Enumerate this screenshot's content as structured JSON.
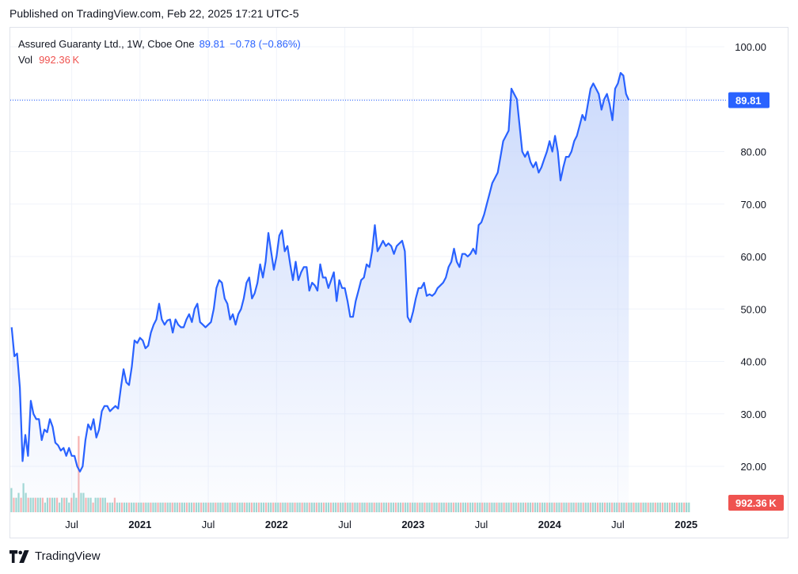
{
  "header": {
    "published": "Published on TradingView.com, Feb 22, 2025 17:21 UTC-5"
  },
  "legend": {
    "symbol": "Assured Guaranty Ltd., 1W, Cboe One",
    "last": "89.81",
    "change": "−0.78 (−0.86%)",
    "vol_label": "Vol",
    "vol_value": "992.36 K"
  },
  "badges": {
    "price": "89.81",
    "volume": "992.36 K"
  },
  "footer": {
    "brand": "TradingView"
  },
  "colors": {
    "line": "#2962ff",
    "fill_top": "#c9d8fb",
    "up_vol": "#26a69a",
    "down_vol": "#ef5350",
    "price_badge": "#2962ff",
    "vol_badge": "#ef5350"
  },
  "chart_data": {
    "type": "area",
    "title": "",
    "xlabel": "",
    "ylabel": "",
    "ylim": [
      15,
      103
    ],
    "yticks": [
      "100.00",
      "90.00",
      "80.00",
      "70.00",
      "60.00",
      "50.00",
      "40.00",
      "30.00",
      "20.00"
    ],
    "xticks": [
      {
        "label": "Jul",
        "t": 2020.5,
        "bold": false
      },
      {
        "label": "2021",
        "t": 2021.0,
        "bold": true
      },
      {
        "label": "Jul",
        "t": 2021.5,
        "bold": false
      },
      {
        "label": "2022",
        "t": 2022.0,
        "bold": true
      },
      {
        "label": "Jul",
        "t": 2022.5,
        "bold": false
      },
      {
        "label": "2023",
        "t": 2023.0,
        "bold": true
      },
      {
        "label": "Jul",
        "t": 2023.5,
        "bold": false
      },
      {
        "label": "2024",
        "t": 2024.0,
        "bold": true
      },
      {
        "label": "Jul",
        "t": 2024.5,
        "bold": false
      },
      {
        "label": "2025",
        "t": 2025.0,
        "bold": true
      }
    ],
    "last_price": 89.81,
    "series": [
      {
        "name": "Assured Guaranty Ltd.",
        "points": [
          [
            2020.06,
            46.5
          ],
          [
            2020.08,
            41
          ],
          [
            2020.1,
            41.5
          ],
          [
            2020.12,
            35
          ],
          [
            2020.14,
            21
          ],
          [
            2020.16,
            26
          ],
          [
            2020.18,
            22
          ],
          [
            2020.2,
            32.5
          ],
          [
            2020.22,
            30
          ],
          [
            2020.24,
            29
          ],
          [
            2020.26,
            29
          ],
          [
            2020.28,
            25
          ],
          [
            2020.3,
            27
          ],
          [
            2020.32,
            26.5
          ],
          [
            2020.34,
            29
          ],
          [
            2020.36,
            27.5
          ],
          [
            2020.38,
            24.5
          ],
          [
            2020.4,
            24
          ],
          [
            2020.42,
            23
          ],
          [
            2020.44,
            23.5
          ],
          [
            2020.46,
            22
          ],
          [
            2020.48,
            23.5
          ],
          [
            2020.5,
            22
          ],
          [
            2020.52,
            22
          ],
          [
            2020.54,
            20
          ],
          [
            2020.56,
            19
          ],
          [
            2020.58,
            20
          ],
          [
            2020.6,
            25
          ],
          [
            2020.62,
            28
          ],
          [
            2020.64,
            27
          ],
          [
            2020.66,
            29
          ],
          [
            2020.68,
            25.5
          ],
          [
            2020.7,
            27
          ],
          [
            2020.72,
            30.5
          ],
          [
            2020.74,
            31.5
          ],
          [
            2020.76,
            31.5
          ],
          [
            2020.78,
            30.5
          ],
          [
            2020.8,
            31
          ],
          [
            2020.82,
            31.5
          ],
          [
            2020.84,
            31
          ],
          [
            2020.86,
            35
          ],
          [
            2020.88,
            38.5
          ],
          [
            2020.9,
            36
          ],
          [
            2020.92,
            35.5
          ],
          [
            2020.94,
            39
          ],
          [
            2020.96,
            44
          ],
          [
            2020.98,
            43.5
          ],
          [
            2021.0,
            44.5
          ],
          [
            2021.02,
            44
          ],
          [
            2021.04,
            42.5
          ],
          [
            2021.06,
            43
          ],
          [
            2021.08,
            45.5
          ],
          [
            2021.1,
            47
          ],
          [
            2021.12,
            48
          ],
          [
            2021.14,
            51
          ],
          [
            2021.16,
            48
          ],
          [
            2021.18,
            47
          ],
          [
            2021.2,
            47.8
          ],
          [
            2021.22,
            48
          ],
          [
            2021.24,
            45.5
          ],
          [
            2021.26,
            48
          ],
          [
            2021.28,
            47
          ],
          [
            2021.3,
            46.5
          ],
          [
            2021.32,
            46.5
          ],
          [
            2021.34,
            48
          ],
          [
            2021.36,
            49
          ],
          [
            2021.38,
            47.5
          ],
          [
            2021.4,
            50
          ],
          [
            2021.42,
            51
          ],
          [
            2021.44,
            47.5
          ],
          [
            2021.46,
            47
          ],
          [
            2021.48,
            46.5
          ],
          [
            2021.5,
            47
          ],
          [
            2021.52,
            47.5
          ],
          [
            2021.54,
            50
          ],
          [
            2021.56,
            54
          ],
          [
            2021.58,
            55.5
          ],
          [
            2021.6,
            55
          ],
          [
            2021.62,
            52
          ],
          [
            2021.64,
            51
          ],
          [
            2021.66,
            48
          ],
          [
            2021.68,
            49
          ],
          [
            2021.7,
            47
          ],
          [
            2021.72,
            49
          ],
          [
            2021.74,
            50
          ],
          [
            2021.76,
            52
          ],
          [
            2021.78,
            55
          ],
          [
            2021.8,
            56
          ],
          [
            2021.82,
            52
          ],
          [
            2021.84,
            53
          ],
          [
            2021.86,
            55
          ],
          [
            2021.88,
            58.5
          ],
          [
            2021.9,
            56
          ],
          [
            2021.92,
            59
          ],
          [
            2021.94,
            64.5
          ],
          [
            2021.96,
            61
          ],
          [
            2021.98,
            57.5
          ],
          [
            2022.0,
            60
          ],
          [
            2022.02,
            64
          ],
          [
            2022.04,
            65
          ],
          [
            2022.06,
            61
          ],
          [
            2022.08,
            62
          ],
          [
            2022.1,
            58.5
          ],
          [
            2022.12,
            55.5
          ],
          [
            2022.14,
            59
          ],
          [
            2022.16,
            55.5
          ],
          [
            2022.18,
            57
          ],
          [
            2022.2,
            58
          ],
          [
            2022.22,
            58
          ],
          [
            2022.24,
            53.5
          ],
          [
            2022.26,
            55
          ],
          [
            2022.28,
            54.5
          ],
          [
            2022.3,
            53.5
          ],
          [
            2022.32,
            58.5
          ],
          [
            2022.34,
            56
          ],
          [
            2022.36,
            56
          ],
          [
            2022.38,
            54
          ],
          [
            2022.4,
            55.5
          ],
          [
            2022.42,
            57
          ],
          [
            2022.44,
            51.5
          ],
          [
            2022.46,
            55.5
          ],
          [
            2022.48,
            54
          ],
          [
            2022.5,
            54
          ],
          [
            2022.52,
            51.5
          ],
          [
            2022.54,
            48.5
          ],
          [
            2022.56,
            48.5
          ],
          [
            2022.58,
            51.5
          ],
          [
            2022.6,
            53.5
          ],
          [
            2022.62,
            55.5
          ],
          [
            2022.64,
            56
          ],
          [
            2022.66,
            58.5
          ],
          [
            2022.68,
            58
          ],
          [
            2022.7,
            61
          ],
          [
            2022.72,
            66
          ],
          [
            2022.74,
            61
          ],
          [
            2022.76,
            62
          ],
          [
            2022.78,
            63
          ],
          [
            2022.8,
            62
          ],
          [
            2022.82,
            62.5
          ],
          [
            2022.84,
            62
          ],
          [
            2022.86,
            60.5
          ],
          [
            2022.88,
            62
          ],
          [
            2022.9,
            62.5
          ],
          [
            2022.92,
            63
          ],
          [
            2022.94,
            61
          ],
          [
            2022.96,
            48.5
          ],
          [
            2022.98,
            47.5
          ],
          [
            2023.0,
            49.5
          ],
          [
            2023.02,
            52
          ],
          [
            2023.04,
            54
          ],
          [
            2023.06,
            54
          ],
          [
            2023.08,
            55
          ],
          [
            2023.1,
            52.5
          ],
          [
            2023.12,
            52.8
          ],
          [
            2023.14,
            52.5
          ],
          [
            2023.16,
            53
          ],
          [
            2023.18,
            54
          ],
          [
            2023.2,
            54.5
          ],
          [
            2023.22,
            55
          ],
          [
            2023.24,
            56
          ],
          [
            2023.26,
            58
          ],
          [
            2023.28,
            59
          ],
          [
            2023.3,
            61.5
          ],
          [
            2023.32,
            59
          ],
          [
            2023.34,
            58
          ],
          [
            2023.36,
            60.5
          ],
          [
            2023.38,
            60.5
          ],
          [
            2023.4,
            60
          ],
          [
            2023.42,
            60.5
          ],
          [
            2023.44,
            61.5
          ],
          [
            2023.46,
            60.5
          ],
          [
            2023.48,
            66
          ],
          [
            2023.5,
            66.5
          ],
          [
            2023.52,
            68
          ],
          [
            2023.54,
            70
          ],
          [
            2023.56,
            72
          ],
          [
            2023.58,
            74
          ],
          [
            2023.6,
            75
          ],
          [
            2023.62,
            76
          ],
          [
            2023.64,
            79
          ],
          [
            2023.66,
            82
          ],
          [
            2023.68,
            83
          ],
          [
            2023.7,
            84
          ],
          [
            2023.72,
            92
          ],
          [
            2023.74,
            91
          ],
          [
            2023.76,
            90
          ],
          [
            2023.78,
            85
          ],
          [
            2023.8,
            80
          ],
          [
            2023.82,
            79
          ],
          [
            2023.84,
            80
          ],
          [
            2023.86,
            78
          ],
          [
            2023.88,
            77
          ],
          [
            2023.9,
            78
          ],
          [
            2023.92,
            76
          ],
          [
            2023.94,
            77
          ],
          [
            2023.96,
            78.5
          ],
          [
            2023.98,
            80
          ],
          [
            2024.0,
            82
          ],
          [
            2024.02,
            80
          ],
          [
            2024.04,
            83
          ],
          [
            2024.06,
            80
          ],
          [
            2024.08,
            74.5
          ],
          [
            2024.1,
            77
          ],
          [
            2024.12,
            79
          ],
          [
            2024.14,
            79
          ],
          [
            2024.16,
            80
          ],
          [
            2024.18,
            82
          ],
          [
            2024.2,
            83
          ],
          [
            2024.22,
            85
          ],
          [
            2024.24,
            87
          ],
          [
            2024.26,
            86
          ],
          [
            2024.28,
            89
          ],
          [
            2024.3,
            92
          ],
          [
            2024.32,
            93
          ],
          [
            2024.34,
            92
          ],
          [
            2024.36,
            91
          ],
          [
            2024.38,
            88
          ],
          [
            2024.4,
            90
          ],
          [
            2024.42,
            91
          ],
          [
            2024.44,
            89
          ],
          [
            2024.46,
            86
          ],
          [
            2024.48,
            92
          ],
          [
            2024.5,
            93
          ],
          [
            2024.52,
            95
          ],
          [
            2024.54,
            94.5
          ],
          [
            2024.56,
            91
          ],
          [
            2024.58,
            89.8
          ]
        ]
      },
      {
        "name": "Vol",
        "values": [
          5,
          3,
          3,
          4,
          3,
          6,
          4,
          3,
          3,
          3,
          3,
          3,
          3,
          3,
          2,
          3,
          3,
          3,
          3,
          3,
          2,
          3,
          3,
          3,
          2,
          3,
          4,
          3,
          9,
          4,
          4,
          3,
          3,
          3,
          2,
          3,
          3,
          3,
          3,
          3,
          2,
          2,
          2,
          3,
          2,
          2,
          2,
          2,
          2,
          2,
          2,
          2,
          2,
          2,
          2,
          2,
          2,
          2,
          2,
          2,
          2,
          2,
          2,
          2,
          2,
          2,
          2,
          2,
          2,
          2,
          2,
          2,
          2,
          2,
          2,
          2,
          2,
          2,
          2,
          2,
          2,
          2,
          2,
          2,
          2,
          2,
          2,
          2,
          2,
          2,
          2,
          2,
          2,
          2,
          2,
          2,
          2,
          2,
          2,
          2,
          2,
          2,
          2,
          2,
          2,
          2,
          2,
          2,
          2,
          2,
          2,
          2,
          2,
          2,
          2,
          2,
          2,
          2,
          2,
          2,
          2,
          2,
          2,
          2,
          2,
          2,
          2,
          2,
          2,
          2,
          2,
          2,
          2,
          2,
          2,
          2,
          2,
          2,
          2,
          2,
          2,
          2,
          2,
          2,
          2,
          2,
          2,
          2,
          2,
          2,
          2,
          2,
          2,
          2,
          2,
          2,
          2,
          2,
          2,
          2,
          2,
          2,
          2,
          2,
          2,
          2,
          2,
          2,
          2,
          2,
          2,
          2,
          2,
          2,
          2,
          2,
          2,
          2,
          2,
          2,
          2,
          2,
          2,
          2,
          2,
          2,
          2,
          2,
          2,
          2,
          2,
          2,
          2,
          2,
          2,
          2,
          2,
          2,
          2,
          2,
          2,
          2,
          2,
          2,
          2,
          2,
          2,
          2,
          2,
          2,
          2,
          2,
          2,
          2,
          2,
          2,
          2,
          2,
          2,
          2,
          2,
          2,
          2,
          2,
          2,
          2,
          2,
          2,
          2,
          2,
          2,
          2,
          2,
          2,
          2,
          2,
          2,
          2,
          2,
          2,
          2,
          2,
          2,
          2,
          2,
          2,
          2,
          2,
          2,
          2,
          2,
          2,
          2,
          2,
          2,
          2,
          2,
          2,
          2,
          2,
          2,
          2,
          2,
          2,
          2,
          2,
          2,
          2,
          2,
          2,
          2,
          2,
          2,
          2,
          2,
          2,
          2,
          2,
          2,
          2,
          2,
          2,
          2
        ]
      }
    ]
  }
}
